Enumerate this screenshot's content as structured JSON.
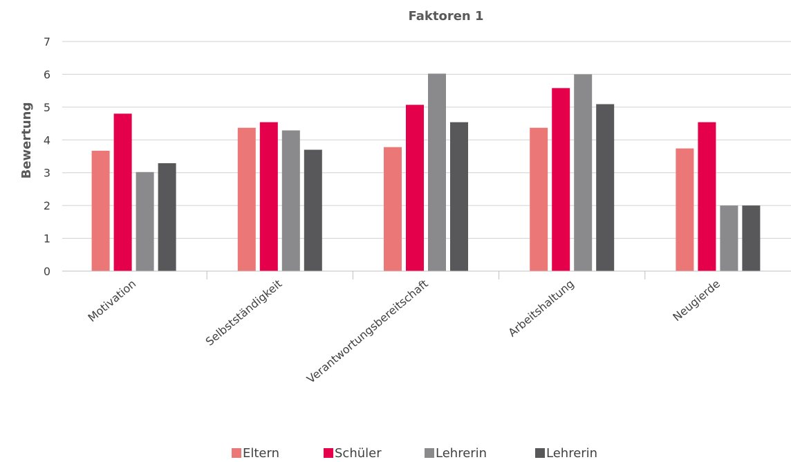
{
  "chart_data": {
    "type": "bar",
    "title": "Faktoren 1",
    "xlabel": "",
    "ylabel": "Bewertung",
    "ylim": [
      0,
      7
    ],
    "yticks": [
      0,
      1,
      2,
      3,
      4,
      5,
      6,
      7
    ],
    "grid": true,
    "legend_position": "bottom",
    "categories": [
      "Motivation",
      "Selbstständigkeit",
      "Verantwortungsbereitschaft",
      "Arbeitshaltung",
      "Neugierde"
    ],
    "series": [
      {
        "name": "Eltern",
        "color": "#ec7777",
        "values": [
          3.67,
          4.37,
          3.78,
          4.37,
          3.74
        ]
      },
      {
        "name": "Schüler",
        "color": "#e4004b",
        "values": [
          4.8,
          4.54,
          5.07,
          5.58,
          4.54
        ]
      },
      {
        "name": "Lehrerin",
        "color": "#8a8a8c",
        "values": [
          3.02,
          4.29,
          6.02,
          6.0,
          2.0
        ]
      },
      {
        "name": "Lehrerin",
        "color": "#58585a",
        "values": [
          3.29,
          3.7,
          4.54,
          5.09,
          2.0
        ]
      }
    ]
  }
}
